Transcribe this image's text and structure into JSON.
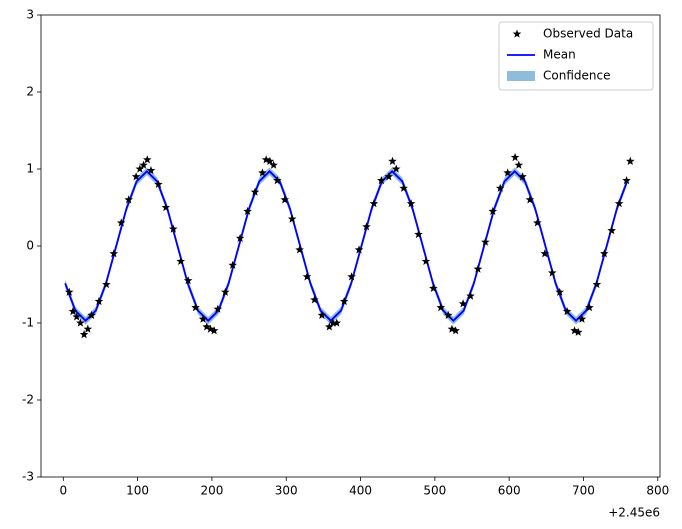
{
  "chart_data": {
    "type": "line",
    "x_offset_label": "+2.45e6",
    "xlim": [
      -30,
      803
    ],
    "xticks": [
      0,
      100,
      200,
      300,
      400,
      500,
      600,
      700,
      800
    ],
    "ylim": [
      -3,
      3
    ],
    "yticks": [
      -3,
      -2,
      -1,
      0,
      1,
      2,
      3
    ],
    "legend": "upper right",
    "series": [
      {
        "name": "Observed Data",
        "type": "scatter",
        "marker": "*",
        "color": "#000000",
        "x": [
          8,
          18,
          28,
          38,
          48,
          58,
          68,
          78,
          88,
          98,
          108,
          118,
          128,
          138,
          148,
          158,
          168,
          178,
          188,
          198,
          208,
          218,
          228,
          238,
          248,
          258,
          268,
          278,
          288,
          298,
          308,
          318,
          328,
          338,
          348,
          358,
          368,
          378,
          388,
          398,
          408,
          418,
          428,
          438,
          448,
          458,
          468,
          478,
          488,
          498,
          508,
          518,
          528,
          538,
          548,
          558,
          568,
          578,
          588,
          598,
          608,
          618,
          628,
          638,
          648,
          658,
          668,
          678,
          688,
          698,
          708,
          718,
          728,
          738,
          748,
          758,
          763,
          13,
          23,
          33,
          103,
          113,
          193,
          203,
          273,
          283,
          363,
          443,
          523,
          613,
          693
        ],
        "values": [
          -0.6,
          -0.92,
          -1.15,
          -0.9,
          -0.72,
          -0.5,
          -0.1,
          0.3,
          0.6,
          0.9,
          1.05,
          0.98,
          0.8,
          0.5,
          0.22,
          -0.2,
          -0.45,
          -0.8,
          -0.95,
          -1.08,
          -0.82,
          -0.6,
          -0.25,
          0.1,
          0.45,
          0.7,
          0.95,
          1.1,
          0.85,
          0.6,
          0.35,
          -0.05,
          -0.4,
          -0.7,
          -0.9,
          -1.05,
          -1.0,
          -0.72,
          -0.4,
          -0.05,
          0.25,
          0.55,
          0.85,
          0.9,
          1.0,
          0.75,
          0.55,
          0.15,
          -0.2,
          -0.55,
          -0.8,
          -0.9,
          -1.1,
          -0.75,
          -0.65,
          -0.3,
          0.05,
          0.45,
          0.75,
          0.95,
          1.15,
          0.9,
          0.6,
          0.3,
          -0.1,
          -0.35,
          -0.6,
          -0.85,
          -1.1,
          -0.95,
          -0.8,
          -0.5,
          -0.1,
          0.2,
          0.55,
          0.85,
          1.1,
          -0.85,
          -1.0,
          -1.08,
          1.0,
          1.12,
          -1.05,
          -1.1,
          1.12,
          1.05,
          -1.0,
          1.1,
          -1.08,
          1.05,
          -1.12
        ]
      },
      {
        "name": "Mean",
        "type": "line",
        "color": "#0000ff",
        "x": [
          2.5,
          16.25,
          30,
          43.75,
          57.5,
          71.25,
          85,
          98.75,
          112.5,
          126.25,
          140,
          153.75,
          167.5,
          181.25,
          195,
          208.75,
          222.5,
          236.25,
          250,
          263.75,
          277.5,
          291.25,
          305,
          318.75,
          332.5,
          346.25,
          360,
          373.75,
          387.5,
          401.25,
          415,
          428.75,
          442.5,
          456.25,
          470,
          483.75,
          497.5,
          511.25,
          525,
          538.75,
          552.5,
          566.25,
          580,
          593.75,
          607.5,
          621.25,
          635,
          648.75,
          662.5,
          676.25,
          690,
          703.75,
          717.5,
          731.25,
          745,
          758.75
        ],
        "values": [
          -0.485,
          -0.84,
          -0.97,
          -0.84,
          -0.485,
          0,
          0.485,
          0.84,
          0.97,
          0.84,
          0.485,
          0,
          -0.485,
          -0.84,
          -0.97,
          -0.84,
          -0.485,
          0,
          0.485,
          0.84,
          0.97,
          0.84,
          0.485,
          0,
          -0.485,
          -0.84,
          -0.97,
          -0.84,
          -0.485,
          0,
          0.485,
          0.84,
          0.97,
          0.84,
          0.485,
          0,
          -0.485,
          -0.84,
          -0.97,
          -0.84,
          -0.485,
          0,
          0.485,
          0.84,
          0.97,
          0.84,
          0.485,
          0,
          -0.485,
          -0.84,
          -0.97,
          -0.84,
          -0.485,
          0,
          0.485,
          0.84
        ]
      },
      {
        "name": "Confidence",
        "type": "band",
        "color": "#8fbcdd",
        "x": [
          2.5,
          16.25,
          30,
          43.75,
          57.5,
          71.25,
          85,
          98.75,
          112.5,
          126.25,
          140,
          153.75,
          167.5,
          181.25,
          195,
          208.75,
          222.5,
          236.25,
          250,
          263.75,
          277.5,
          291.25,
          305,
          318.75,
          332.5,
          346.25,
          360,
          373.75,
          387.5,
          401.25,
          415,
          428.75,
          442.5,
          456.25,
          470,
          483.75,
          497.5,
          511.25,
          525,
          538.75,
          552.5,
          566.25,
          580,
          593.75,
          607.5,
          621.25,
          635,
          648.75,
          662.5,
          676.25,
          690,
          703.75,
          717.5,
          731.25,
          745,
          758.75
        ],
        "lower": [
          -0.535,
          -0.89,
          -1.02,
          -0.89,
          -0.535,
          -0.05,
          0.435,
          0.79,
          0.92,
          0.79,
          0.435,
          -0.05,
          -0.535,
          -0.89,
          -1.02,
          -0.89,
          -0.535,
          -0.05,
          0.435,
          0.79,
          0.92,
          0.79,
          0.435,
          -0.05,
          -0.535,
          -0.89,
          -1.02,
          -0.89,
          -0.535,
          -0.05,
          0.435,
          0.79,
          0.92,
          0.79,
          0.435,
          -0.05,
          -0.535,
          -0.89,
          -1.02,
          -0.89,
          -0.535,
          -0.05,
          0.435,
          0.79,
          0.92,
          0.79,
          0.435,
          -0.05,
          -0.535,
          -0.89,
          -1.02,
          -0.89,
          -0.535,
          -0.05,
          0.435,
          0.79
        ],
        "upper": [
          -0.435,
          -0.79,
          -0.92,
          -0.79,
          -0.435,
          0.05,
          0.535,
          0.89,
          1.02,
          0.89,
          0.535,
          0.05,
          -0.435,
          -0.79,
          -0.92,
          -0.79,
          -0.435,
          0.05,
          0.535,
          0.89,
          1.02,
          0.89,
          0.535,
          0.05,
          -0.435,
          -0.79,
          -0.92,
          -0.79,
          -0.435,
          0.05,
          0.535,
          0.89,
          1.02,
          0.89,
          0.535,
          0.05,
          -0.435,
          -0.79,
          -0.92,
          -0.79,
          -0.435,
          0.05,
          0.535,
          0.89,
          1.02,
          0.89,
          0.535,
          0.05,
          -0.435,
          -0.79,
          -0.92,
          -0.79,
          -0.435,
          0.05,
          0.535,
          0.89
        ]
      }
    ]
  }
}
